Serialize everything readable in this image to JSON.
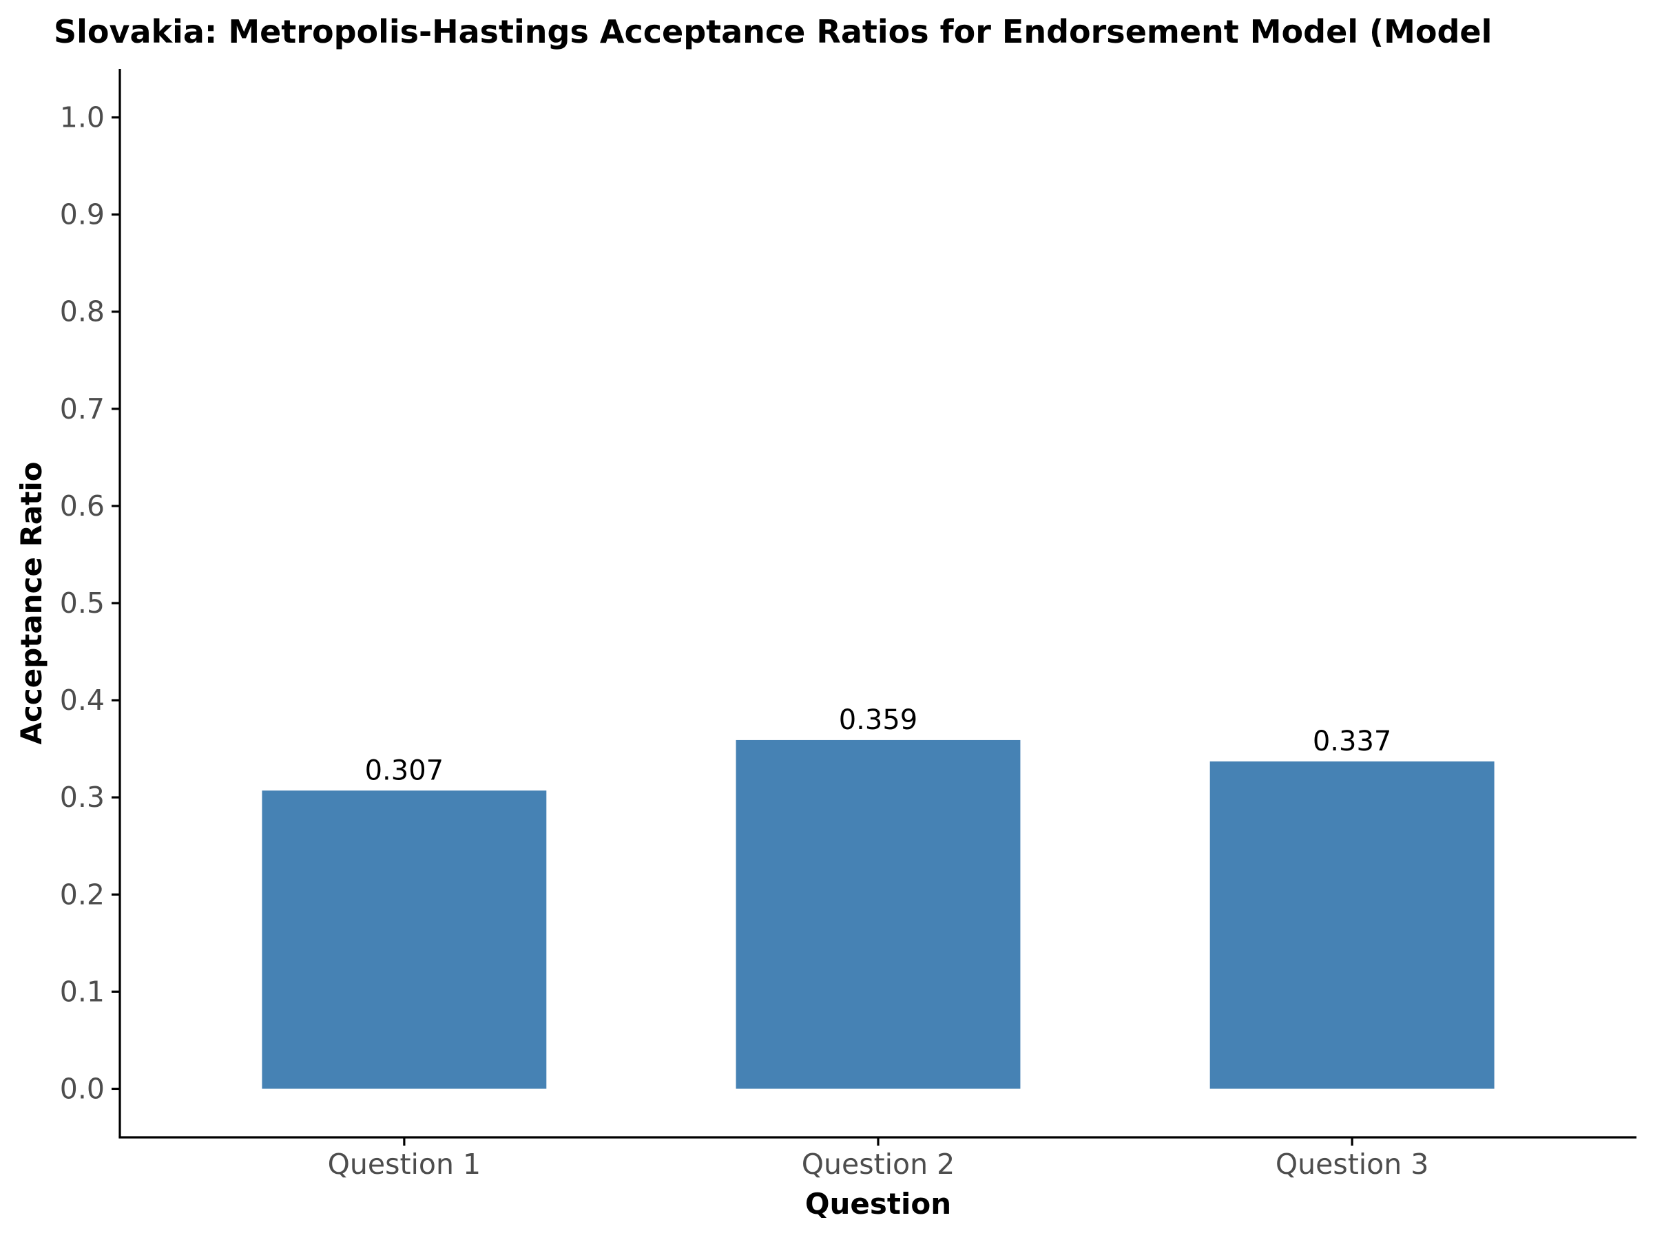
{
  "chart_data": {
    "type": "bar",
    "title": "Slovakia: Metropolis-Hastings Acceptance Ratios for Endorsement Model (Model",
    "xlabel": "Question",
    "ylabel": "Acceptance Ratio",
    "categories": [
      "Question 1",
      "Question 2",
      "Question 3"
    ],
    "values": [
      0.307,
      0.359,
      0.337
    ],
    "data_labels": [
      "0.307",
      "0.359",
      "0.337"
    ],
    "ylim": [
      -0.05,
      1.05
    ],
    "yticks": [
      0.0,
      0.1,
      0.2,
      0.3,
      0.4,
      0.5,
      0.6,
      0.7,
      0.8,
      0.9,
      1.0
    ],
    "ytick_labels": [
      "0.0",
      "0.1",
      "0.2",
      "0.3",
      "0.4",
      "0.5",
      "0.6",
      "0.7",
      "0.8",
      "0.9",
      "1.0"
    ],
    "grid": false,
    "legend": "none",
    "bar_color": "#4682b4",
    "axis_color": "#000000",
    "tick_label_color": "#4d4d4d"
  }
}
